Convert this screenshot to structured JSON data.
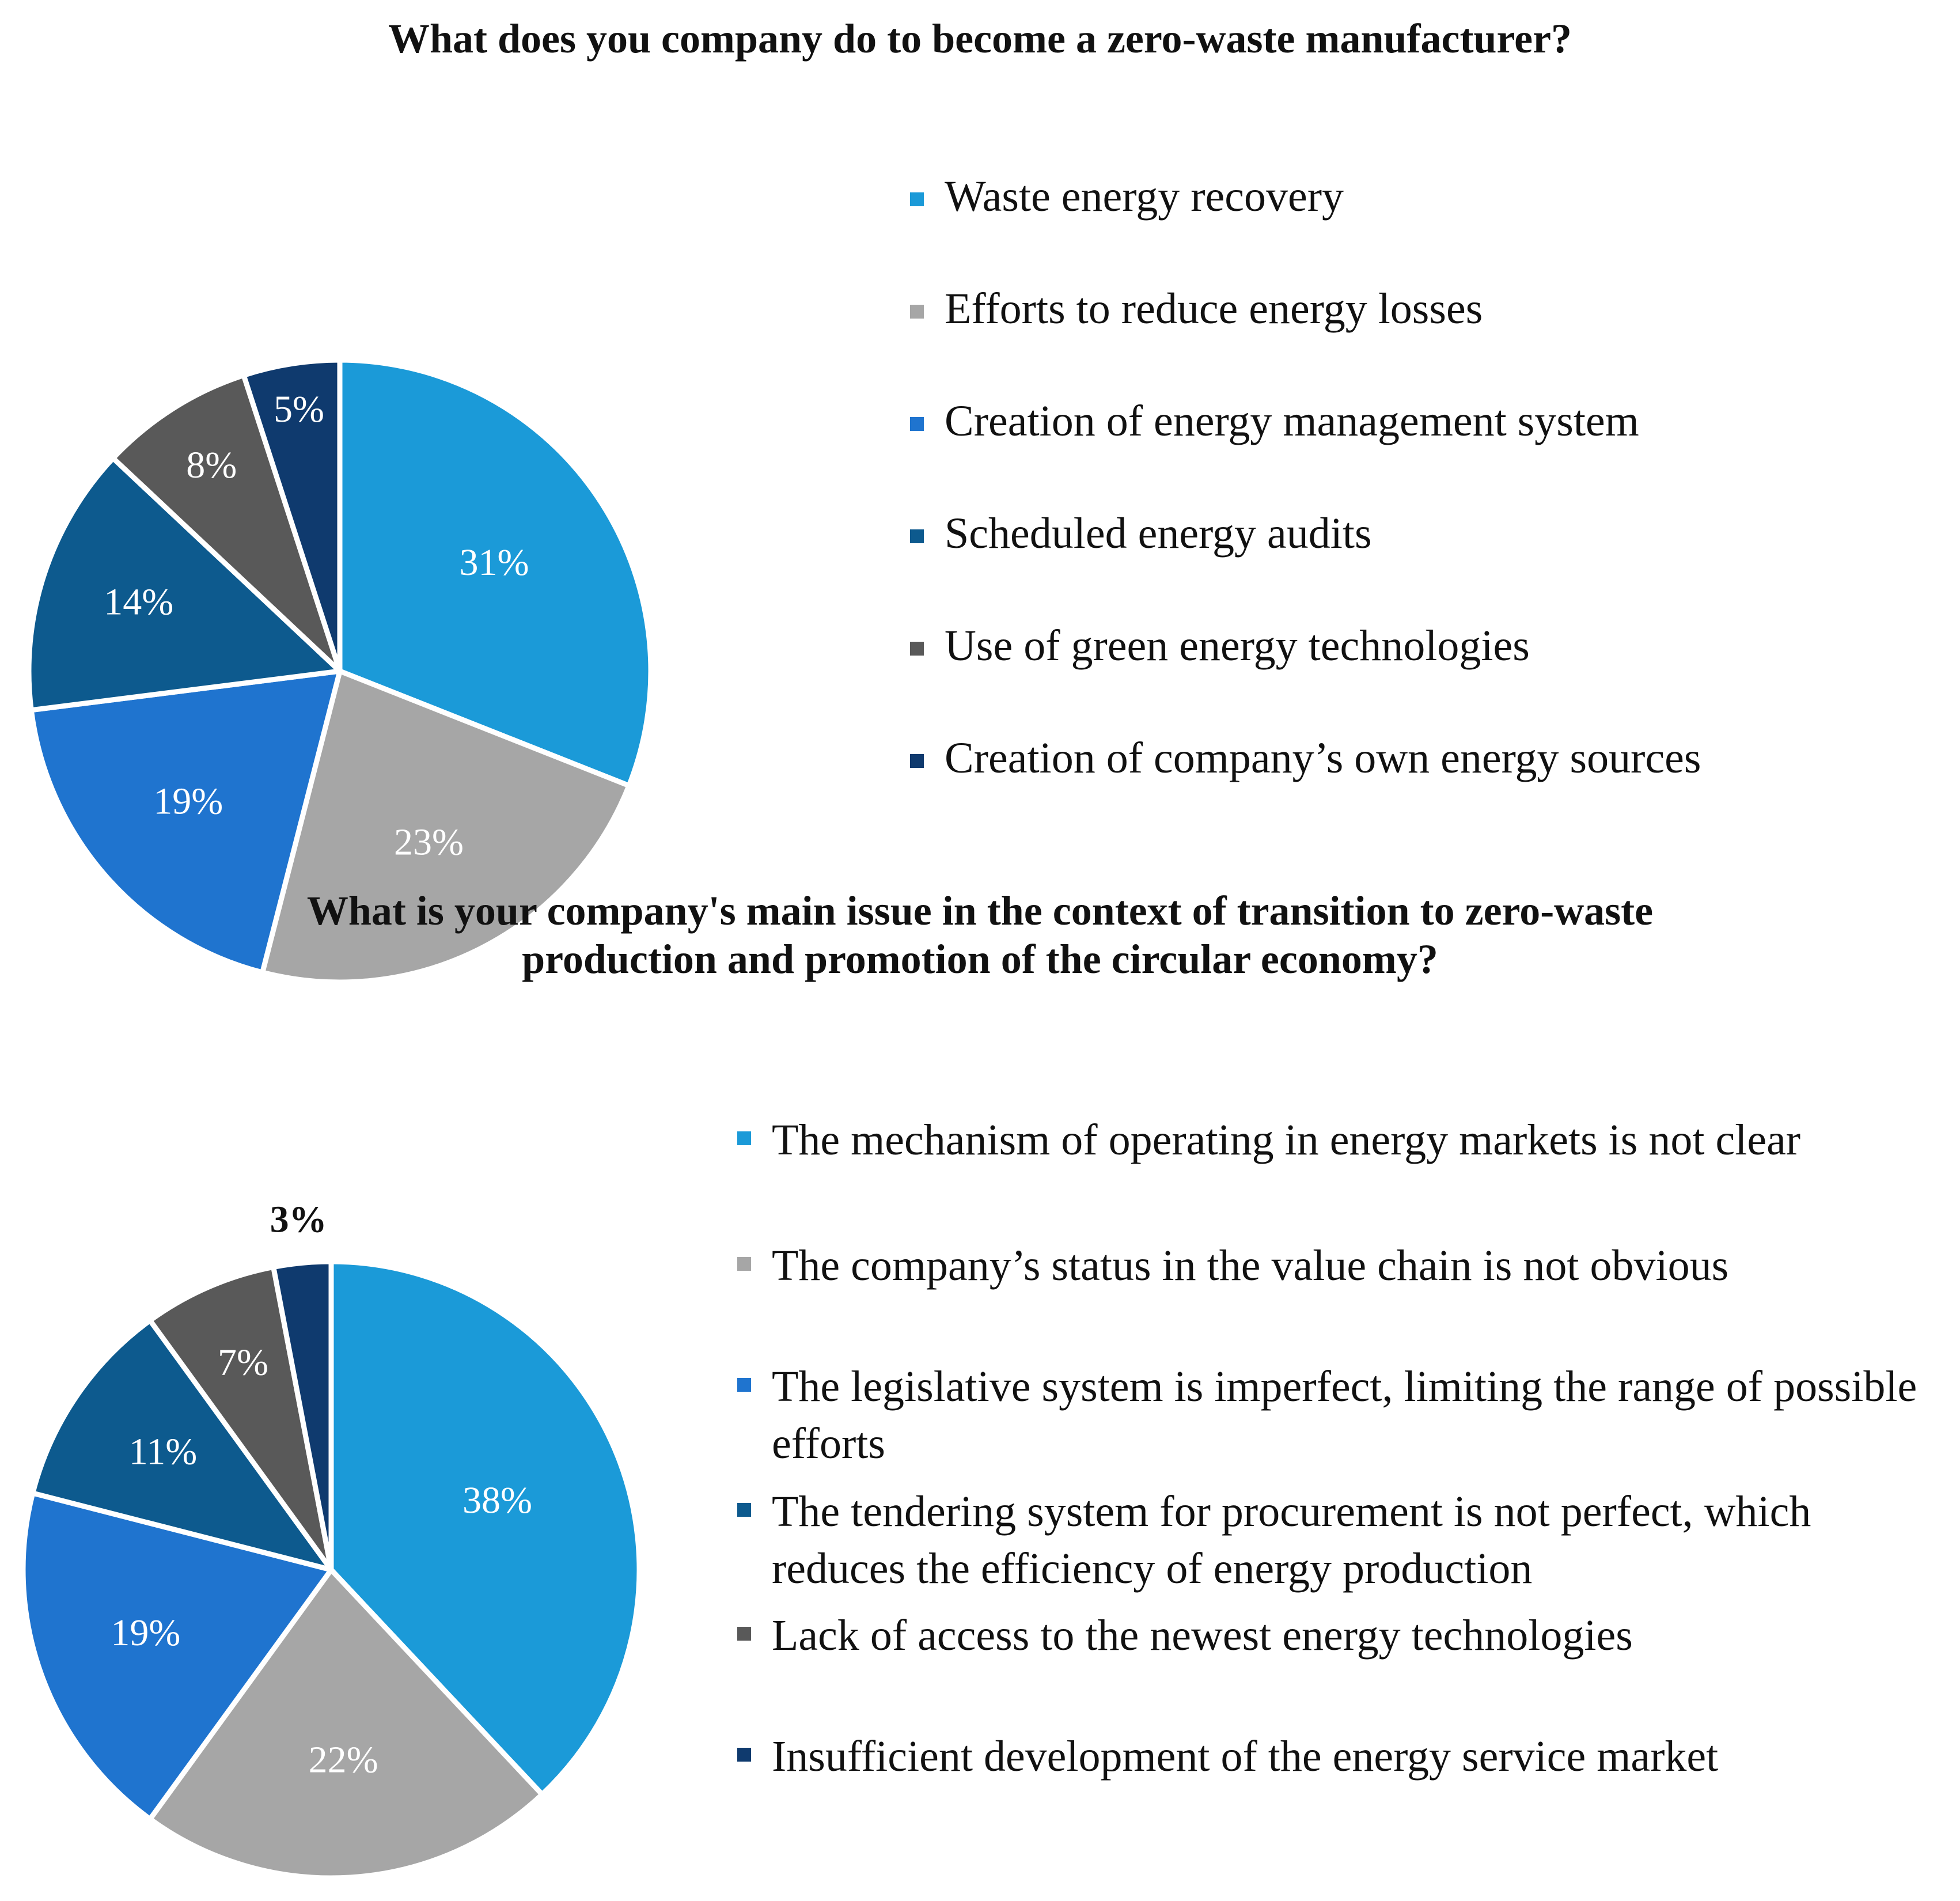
{
  "chart_data": [
    {
      "type": "pie",
      "title": "What does you company do to become a zero-waste manufacturer?",
      "categories": [
        "Waste energy recovery",
        "Efforts to reduce energy losses",
        "Creation of energy management system",
        "Scheduled energy audits",
        "Use of green energy technologies",
        "Creation of company’s own energy sources"
      ],
      "values": [
        31,
        23,
        19,
        14,
        8,
        5
      ],
      "data_labels": [
        "31%",
        "23%",
        "19%",
        "14%",
        "8%",
        "5%"
      ],
      "colors": [
        "#1b9ad8",
        "#a6a6a6",
        "#1f74cf",
        "#0d5a8e",
        "#595959",
        "#0f3a6e"
      ],
      "legend_position": "right"
    },
    {
      "type": "pie",
      "title": "What is your company's main issue in the context of transition to zero-waste production and promotion of the circular economy?",
      "categories": [
        "The mechanism of operating in energy markets is not clear",
        "The company’s status in the value chain is not obvious",
        "The legislative system is imperfect, limiting the range of possible efforts",
        "The tendering system for procurement is not perfect, which reduces the efficiency of energy production",
        "Lack of access to the newest energy technologies",
        "Insufficient development of the energy service market"
      ],
      "values": [
        38,
        22,
        19,
        11,
        7,
        3
      ],
      "data_labels": [
        "38%",
        "22%",
        "19%",
        "11%",
        "7%",
        "3%"
      ],
      "colors": [
        "#1b9ad8",
        "#a6a6a6",
        "#1f74cf",
        "#0d5a8e",
        "#595959",
        "#0f3a6e"
      ],
      "legend_position": "right"
    }
  ]
}
